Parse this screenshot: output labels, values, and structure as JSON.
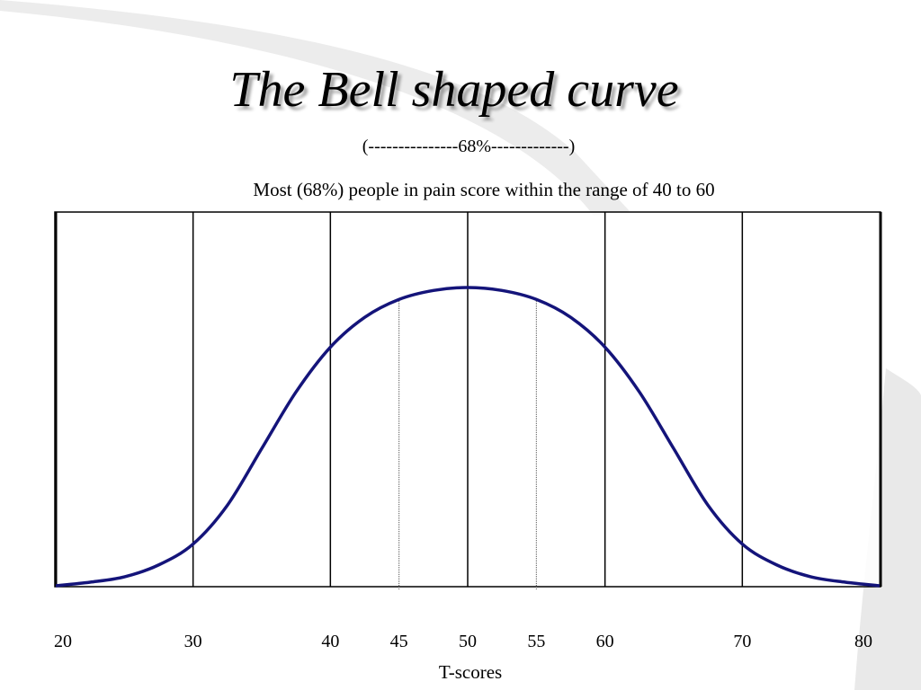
{
  "title": "The Bell shaped curve",
  "range_note": "(---------------68%-------------)",
  "subtitle": "Most (68%) people in pain score within the range of 40 to 60",
  "xlabel": "T-scores",
  "colors": {
    "curve": "#14147a",
    "grid": "#000000",
    "dotted": "#555555",
    "background_swoosh": "#e8e8e8"
  },
  "chart_data": {
    "type": "line",
    "title": "The Bell shaped curve",
    "xlabel": "T-scores",
    "ylabel": "",
    "xlim": [
      20,
      80
    ],
    "ylim": [
      0,
      1
    ],
    "grid": true,
    "x_ticks": [
      20,
      30,
      40,
      45,
      50,
      55,
      60,
      70,
      80
    ],
    "x_tick_labels": [
      "20",
      "30",
      "40",
      "45",
      "50",
      "55",
      "60",
      "70",
      "80"
    ],
    "solid_gridlines_x": [
      30,
      40,
      50,
      60,
      70
    ],
    "dotted_gridlines_x": [
      45,
      55
    ],
    "series": [
      {
        "color": "#14147a",
        "x": [
          20,
          22.5,
          25,
          27.5,
          30,
          32.5,
          35,
          37.5,
          40,
          42.5,
          45,
          47.5,
          50,
          52.5,
          55,
          57.5,
          60,
          62.5,
          65,
          67.5,
          70,
          72.5,
          75,
          77.5,
          80
        ],
        "y": [
          0.0,
          0.012,
          0.03,
          0.07,
          0.14,
          0.27,
          0.46,
          0.65,
          0.8,
          0.9,
          0.96,
          0.99,
          1.0,
          0.99,
          0.96,
          0.9,
          0.8,
          0.65,
          0.46,
          0.27,
          0.14,
          0.07,
          0.03,
          0.012,
          0.0
        ]
      }
    ]
  }
}
